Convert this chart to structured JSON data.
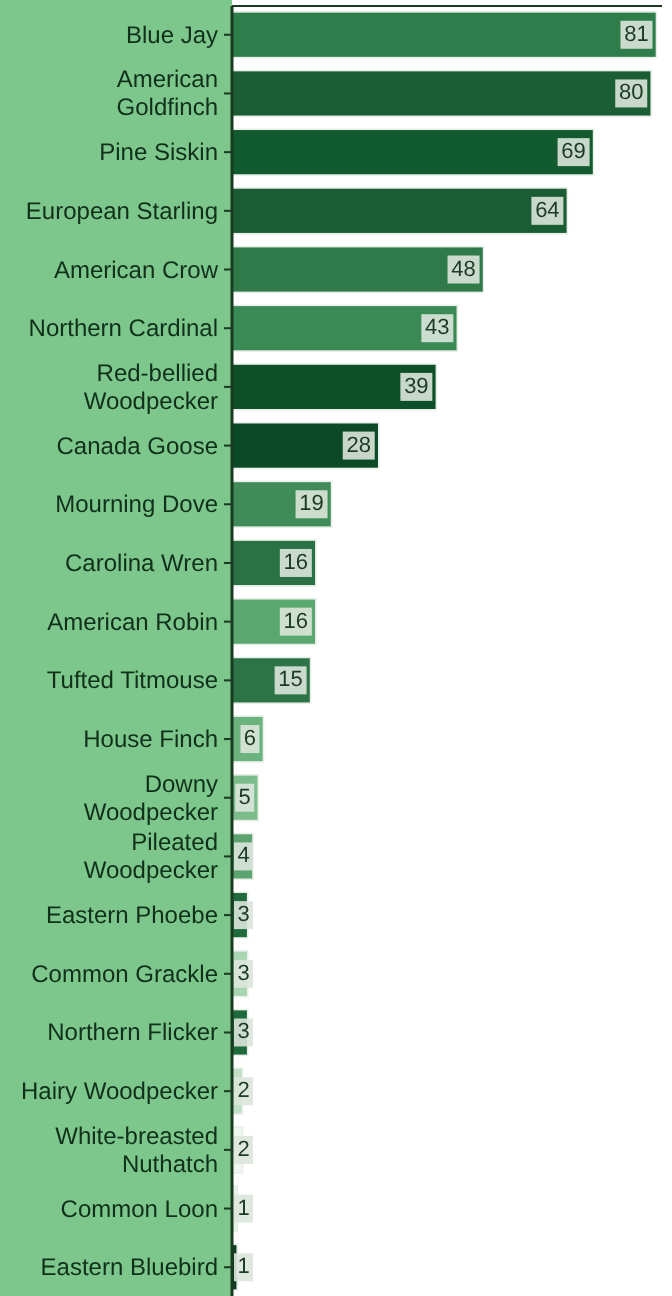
{
  "chart_data": {
    "type": "bar",
    "orientation": "horizontal",
    "data_labels": true,
    "categories": [
      "Blue Jay",
      "American Goldfinch",
      "Pine Siskin",
      "European Starling",
      "American Crow",
      "Northern Cardinal",
      "Red-bellied Woodpecker",
      "Canada Goose",
      "Mourning Dove",
      "Carolina Wren",
      "American Robin",
      "Tufted Titmouse",
      "House Finch",
      "Downy Woodpecker",
      "Pileated Woodpecker",
      "Eastern Phoebe",
      "Common Grackle",
      "Northern Flicker",
      "Hairy Woodpecker",
      "White-breasted Nuthatch",
      "Common Loon",
      "Eastern Bluebird"
    ],
    "values": [
      81,
      80,
      69,
      64,
      48,
      43,
      39,
      28,
      19,
      16,
      16,
      15,
      6,
      5,
      4,
      3,
      3,
      3,
      2,
      2,
      1,
      1
    ],
    "colors": [
      "#2e7d4a",
      "#1b5e35",
      "#125b2e",
      "#1a5c33",
      "#2f7a48",
      "#3a8a55",
      "#0d4f26",
      "#0b4a24",
      "#3f8c58",
      "#2a7244",
      "#5aa870",
      "#2c7446",
      "#6ab37e",
      "#7cbc8b",
      "#5ba46f",
      "#1f6b3c",
      "#a8d4b0",
      "#1e6a3b",
      "#c0dfc4",
      "#f0f7f0",
      "#e8f3e8",
      "#0e3d1f"
    ]
  }
}
